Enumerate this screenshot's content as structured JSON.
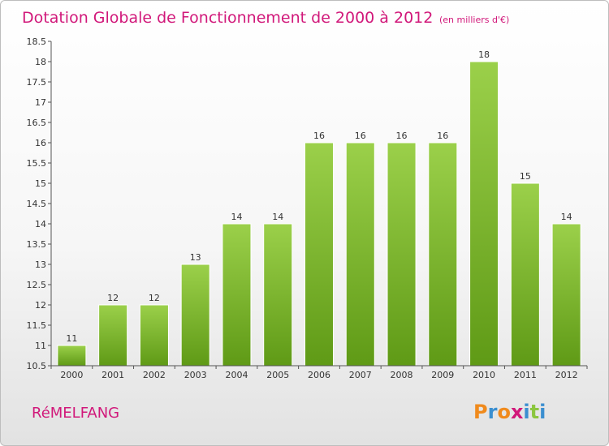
{
  "chart_data": {
    "type": "bar",
    "title": "Dotation Globale de Fonctionnement de 2000 à 2012",
    "unit": "(en milliers d'€)",
    "categories": [
      "2000",
      "2001",
      "2002",
      "2003",
      "2004",
      "2005",
      "2006",
      "2007",
      "2008",
      "2009",
      "2010",
      "2011",
      "2012"
    ],
    "values": [
      11,
      12,
      12,
      13,
      14,
      14,
      16,
      16,
      16,
      16,
      18,
      15,
      14
    ],
    "value_labels": [
      "11",
      "12",
      "12",
      "13",
      "14",
      "14",
      "16",
      "16",
      "16",
      "16",
      "18",
      "15",
      "14"
    ],
    "ylim": [
      10.5,
      18.5
    ],
    "yticks": [
      10.5,
      11,
      11.5,
      12,
      12.5,
      13,
      13.5,
      14,
      14.5,
      15,
      15.5,
      16,
      16.5,
      17,
      17.5,
      18,
      18.5
    ],
    "ytick_labels": [
      "10.5",
      "11",
      "11.5",
      "12",
      "12.5",
      "13",
      "13.5",
      "14",
      "14.5",
      "15",
      "15.5",
      "16",
      "16.5",
      "17",
      "17.5",
      "18",
      "18.5"
    ],
    "grid": false,
    "bar_color": "#8cc63f",
    "bar_color_dark": "#5f9a16"
  },
  "commune": "RéMELFANG",
  "logo": {
    "letters": [
      "P",
      "r",
      "o",
      "x",
      "i",
      "t",
      "i"
    ],
    "colors": [
      "#f08a1c",
      "#3b8fd0",
      "#f08a1c",
      "#d1187a",
      "#3b8fd0",
      "#8cc63f",
      "#3b8fd0"
    ]
  },
  "colors": {
    "accent": "#d1187a",
    "axis": "#555555",
    "text": "#333333"
  }
}
